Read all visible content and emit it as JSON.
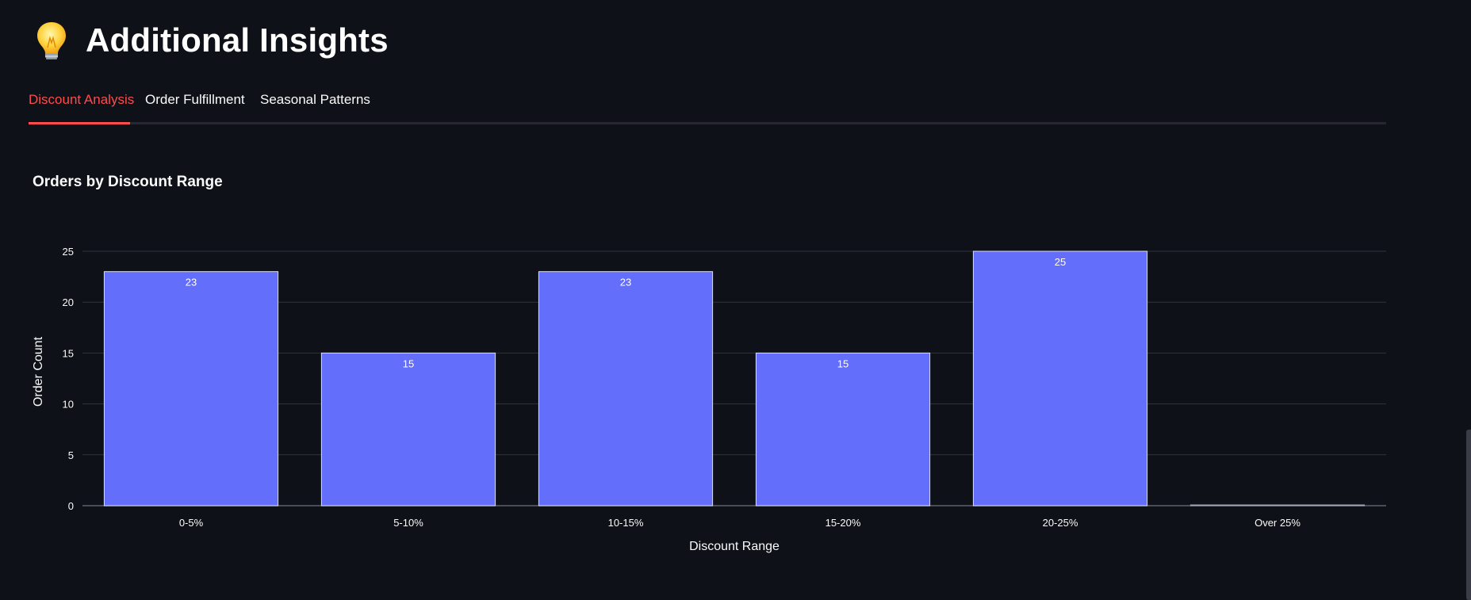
{
  "header": {
    "icon": "lightbulb-icon",
    "title": "Additional Insights"
  },
  "tabs": [
    {
      "label": "Discount Analysis",
      "active": true
    },
    {
      "label": "Order Fulfillment",
      "active": false
    },
    {
      "label": "Seasonal Patterns",
      "active": false
    }
  ],
  "colors": {
    "background": "#0e1117",
    "accent": "#ff4b4b",
    "bar_fill": "#636efa",
    "grid": "#31333f"
  },
  "chart_data": {
    "type": "bar",
    "title": "Orders by Discount Range",
    "xlabel": "Discount Range",
    "ylabel": "Order Count",
    "categories": [
      "0-5%",
      "5-10%",
      "10-15%",
      "15-20%",
      "20-25%",
      "Over 25%"
    ],
    "values": [
      23,
      15,
      23,
      15,
      25,
      0
    ],
    "data_labels": [
      "23",
      "15",
      "23",
      "15",
      "25",
      ""
    ],
    "ylim": [
      0,
      25
    ],
    "yticks": [
      "0",
      "5",
      "10",
      "15",
      "20",
      "25"
    ],
    "grid": true,
    "legend": "none"
  }
}
